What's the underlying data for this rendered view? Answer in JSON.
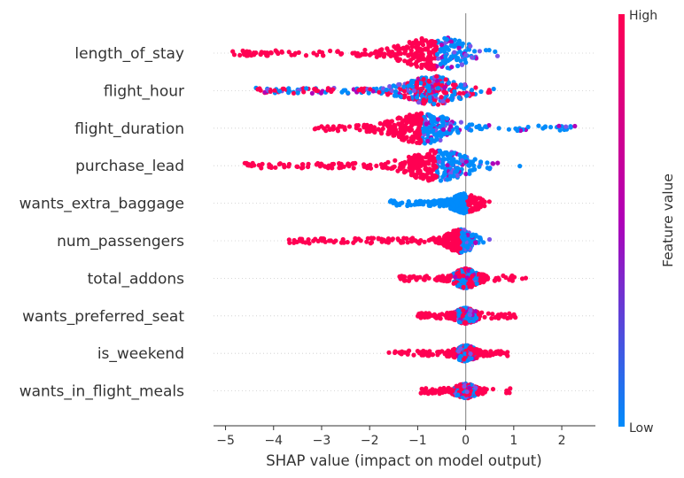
{
  "chart_data": {
    "type": "scatter",
    "subtype": "shap-beeswarm",
    "title": "",
    "xlabel": "SHAP value (impact on model output)",
    "ylabel": "",
    "xlim": [
      -5.25,
      2.7
    ],
    "xticks": [
      -5,
      -4,
      -3,
      -2,
      -1,
      0,
      1,
      2
    ],
    "zero_line": true,
    "gridlines": "dotted-horizontal",
    "colorbar": {
      "label": "Feature value",
      "high_label": "High",
      "low_label": "Low",
      "high_color": "#ff0052",
      "mid_color": "#b000b8",
      "low_color": "#008bfb"
    },
    "features": [
      {
        "name": "length_of_stay",
        "min": -4.9,
        "max": 1.1,
        "center": -0.6,
        "width": 0.9,
        "spread": 1.05,
        "skew": "left",
        "high_side": "left"
      },
      {
        "name": "flight_hour",
        "min": -4.4,
        "max": 1.5,
        "center": -0.7,
        "width": 0.75,
        "spread": 0.9,
        "skew": "left",
        "high_side": "mixed"
      },
      {
        "name": "flight_duration",
        "min": -3.2,
        "max": 2.35,
        "center": -0.9,
        "width": 0.8,
        "spread": 0.95,
        "skew": "both",
        "high_side": "left"
      },
      {
        "name": "purchase_lead",
        "min": -4.6,
        "max": 1.5,
        "center": -0.6,
        "width": 0.8,
        "spread": 1.0,
        "skew": "left",
        "high_side": "left"
      },
      {
        "name": "wants_extra_baggage",
        "min": -1.6,
        "max": 0.55,
        "center": 0.0,
        "width": 0.35,
        "spread": 0.55,
        "skew": "binary",
        "high_side": "right"
      },
      {
        "name": "num_passengers",
        "min": -3.7,
        "max": 1.45,
        "center": -0.1,
        "width": 0.35,
        "spread": 0.7,
        "skew": "left",
        "high_side": "left"
      },
      {
        "name": "total_addons",
        "min": -1.4,
        "max": 1.3,
        "center": 0.0,
        "width": 0.3,
        "spread": 0.55,
        "skew": "both",
        "high_side": "mixed"
      },
      {
        "name": "wants_preferred_seat",
        "min": -1.0,
        "max": 1.05,
        "center": 0.0,
        "width": 0.25,
        "spread": 0.4,
        "skew": "both",
        "high_side": "mixed"
      },
      {
        "name": "is_weekend",
        "min": -1.6,
        "max": 0.9,
        "center": 0.0,
        "width": 0.25,
        "spread": 0.4,
        "skew": "both",
        "high_side": "mixed"
      },
      {
        "name": "wants_in_flight_meals",
        "min": -0.95,
        "max": 0.95,
        "center": 0.0,
        "width": 0.25,
        "spread": 0.35,
        "skew": "both",
        "high_side": "mixed"
      }
    ]
  }
}
